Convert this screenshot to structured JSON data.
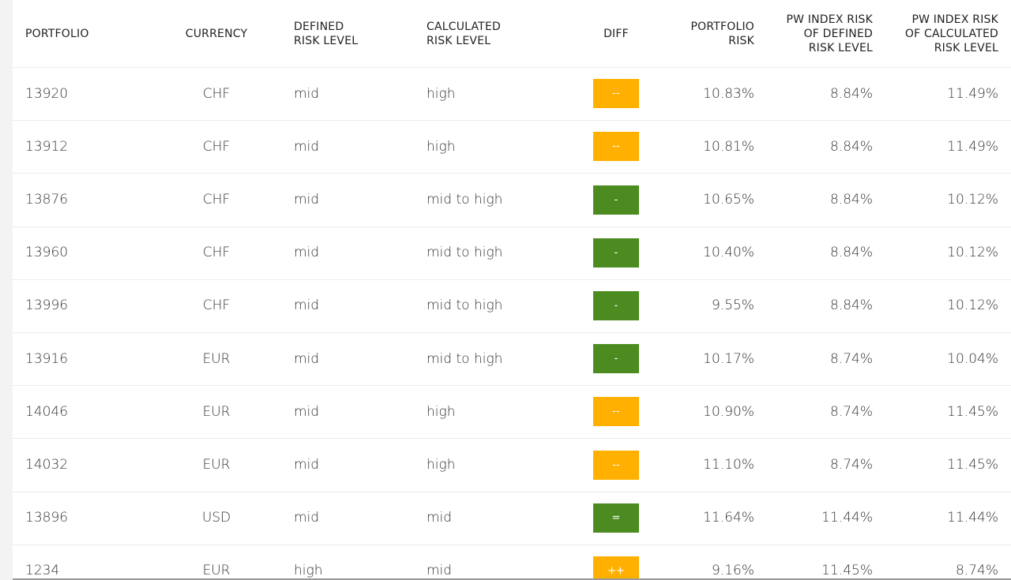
{
  "table": {
    "headers": [
      [
        "PORTFOLIO"
      ],
      [
        "CURRENCY"
      ],
      [
        "DEFINED",
        "RISK LEVEL"
      ],
      [
        "CALCULATED",
        "RISK LEVEL"
      ],
      [
        "DIFF"
      ],
      [
        "PORTFOLIO",
        "RISK"
      ],
      [
        "PW INDEX RISK",
        "OF DEFINED",
        "RISK LEVEL"
      ],
      [
        "PW INDEX RISK",
        "OF CALCULATED",
        "RISK LEVEL"
      ]
    ],
    "rows": [
      [
        "13920",
        "CHF",
        "mid",
        "high",
        {
          "text": "--",
          "color": "#ffb000"
        },
        "10.83%",
        "8.84%",
        "11.49%"
      ],
      [
        "13912",
        "CHF",
        "mid",
        "high",
        {
          "text": "--",
          "color": "#ffb000"
        },
        "10.81%",
        "8.84%",
        "11.49%"
      ],
      [
        "13876",
        "CHF",
        "mid",
        "mid to high",
        {
          "text": "-",
          "color": "#4b8b1f"
        },
        "10.65%",
        "8.84%",
        "10.12%"
      ],
      [
        "13960",
        "CHF",
        "mid",
        "mid to high",
        {
          "text": "-",
          "color": "#4b8b1f"
        },
        "10.40%",
        "8.84%",
        "10.12%"
      ],
      [
        "13996",
        "CHF",
        "mid",
        "mid to high",
        {
          "text": "-",
          "color": "#4b8b1f"
        },
        "9.55%",
        "8.84%",
        "10.12%"
      ],
      [
        "13916",
        "EUR",
        "mid",
        "mid to high",
        {
          "text": "-",
          "color": "#4b8b1f"
        },
        "10.17%",
        "8.74%",
        "10.04%"
      ],
      [
        "14046",
        "EUR",
        "mid",
        "high",
        {
          "text": "--",
          "color": "#ffb000"
        },
        "10.90%",
        "8.74%",
        "11.45%"
      ],
      [
        "14032",
        "EUR",
        "mid",
        "high",
        {
          "text": "--",
          "color": "#ffb000"
        },
        "11.10%",
        "8.74%",
        "11.45%"
      ],
      [
        "13896",
        "USD",
        "mid",
        "mid",
        {
          "text": "=",
          "color": "#4b8b1f"
        },
        "11.64%",
        "11.44%",
        "11.44%"
      ],
      [
        "1234",
        "EUR",
        "high",
        "mid",
        {
          "text": "++",
          "color": "#ffb000"
        },
        "9.16%",
        "11.45%",
        "8.74%"
      ]
    ]
  }
}
